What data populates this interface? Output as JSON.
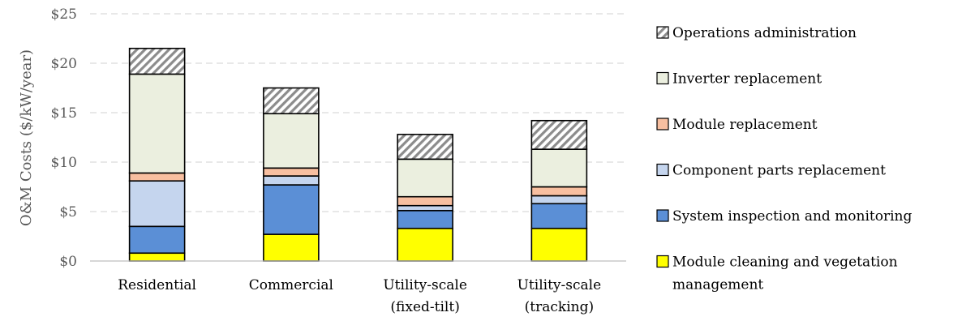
{
  "chart_data": {
    "type": "bar",
    "stacked": true,
    "ylabel": "O&M Costs ($/kW/year)",
    "ylim": [
      0,
      25
    ],
    "yticks": [
      "$0",
      "$5",
      "$10",
      "$15",
      "$20",
      "$25"
    ],
    "grid": true,
    "legend_position": "right",
    "categories": [
      [
        "Residential"
      ],
      [
        "Commercial"
      ],
      [
        "Utility-scale",
        "(fixed-tilt)"
      ],
      [
        "Utility-scale",
        "(tracking)"
      ]
    ],
    "series": [
      {
        "name": "Module cleaning  and vegetation management",
        "legend_lines": [
          "Module cleaning  and vegetation",
          "management"
        ],
        "color": "#FFFF00",
        "pattern": "solid",
        "values": [
          0.8,
          2.7,
          3.3,
          3.3
        ]
      },
      {
        "name": "System inspection and monitoring",
        "legend_lines": [
          "System inspection and monitoring"
        ],
        "color": "#5B8FD6",
        "pattern": "solid",
        "values": [
          2.7,
          5.0,
          1.8,
          2.5
        ]
      },
      {
        "name": "Component parts replacement",
        "legend_lines": [
          "Component parts replacement"
        ],
        "color": "#C5D5EE",
        "pattern": "solid",
        "values": [
          4.6,
          0.9,
          0.5,
          0.8
        ]
      },
      {
        "name": "Module replacement",
        "legend_lines": [
          "Module replacement"
        ],
        "color": "#F8BFA0",
        "pattern": "solid",
        "values": [
          0.8,
          0.8,
          0.9,
          0.9
        ]
      },
      {
        "name": "Inverter replacement",
        "legend_lines": [
          "Inverter replacement"
        ],
        "color": "#EBEFDF",
        "pattern": "solid",
        "values": [
          10.0,
          5.5,
          3.8,
          3.8
        ]
      },
      {
        "name": "Operations administration",
        "legend_lines": [
          "Operations administration"
        ],
        "color": "#8C8C8C",
        "pattern": "hatch",
        "values": [
          2.6,
          2.6,
          2.5,
          2.9
        ]
      }
    ]
  }
}
